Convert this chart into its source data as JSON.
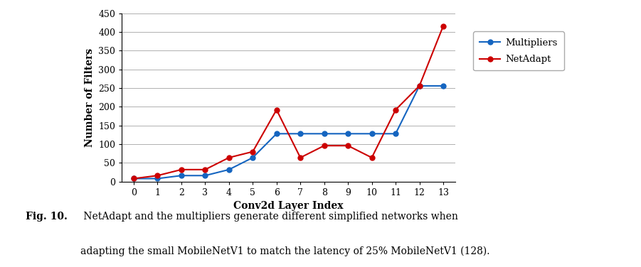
{
  "x": [
    0,
    1,
    2,
    3,
    4,
    5,
    6,
    7,
    8,
    9,
    10,
    11,
    12,
    13
  ],
  "multipliers": [
    8,
    8,
    16,
    16,
    32,
    64,
    128,
    128,
    128,
    128,
    128,
    128,
    256,
    256
  ],
  "netadapt": [
    8,
    16,
    32,
    32,
    64,
    80,
    192,
    64,
    96,
    96,
    64,
    192,
    256,
    416
  ],
  "multipliers_color": "#1565c0",
  "netadapt_color": "#cc0000",
  "marker": "o",
  "xlabel": "Conv2d Layer Index",
  "ylabel": "Number of Filters",
  "ylim": [
    0,
    450
  ],
  "yticks": [
    0,
    50,
    100,
    150,
    200,
    250,
    300,
    350,
    400,
    450
  ],
  "xticks": [
    0,
    1,
    2,
    3,
    4,
    5,
    6,
    7,
    8,
    9,
    10,
    11,
    12,
    13
  ],
  "legend_multipliers": "Multipliers",
  "legend_netadapt": "NetAdapt",
  "caption_bold": "Fig. 10.",
  "caption_rest": " NetAdapt and the multipliers generate different simplified networks when adapting the small MobileNetV1 to match the latency of 25% MobileNetV1 (128).",
  "background_color": "#ffffff",
  "grid_color": "#b0b0b0"
}
